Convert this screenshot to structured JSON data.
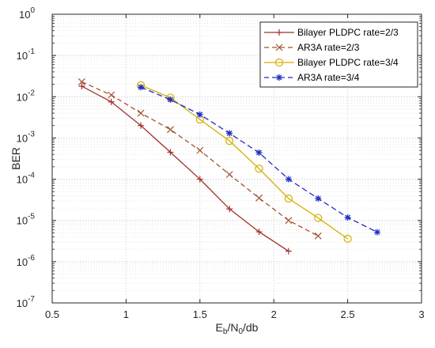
{
  "chart_data": {
    "type": "line",
    "xlabel": "E",
    "xlabel_sub1": "b",
    "xlabel_mid": "/N",
    "xlabel_sub2": "0",
    "xlabel_tail": "/db",
    "ylabel": "BER",
    "xlim": [
      0.5,
      3
    ],
    "ylim": [
      1e-07,
      1
    ],
    "yscale": "log",
    "grid": true,
    "legend_position": "top-right",
    "x_ticks": [
      "0.5",
      "1",
      "1.5",
      "2",
      "2.5",
      "3"
    ],
    "x_tick_values": [
      0.5,
      1,
      1.5,
      2,
      2.5,
      3
    ],
    "y_ticks": [
      {
        "exp": -7,
        "base": "10",
        "sup": "-7"
      },
      {
        "exp": -6,
        "base": "10",
        "sup": "-6"
      },
      {
        "exp": -5,
        "base": "10",
        "sup": "-5"
      },
      {
        "exp": -4,
        "base": "10",
        "sup": "-4"
      },
      {
        "exp": -3,
        "base": "10",
        "sup": "-3"
      },
      {
        "exp": -2,
        "base": "10",
        "sup": "-2"
      },
      {
        "exp": -1,
        "base": "10",
        "sup": "-1"
      },
      {
        "exp": 0,
        "base": "10",
        "sup": "0"
      }
    ],
    "series": [
      {
        "name": "Bilayer PLDPC rate=2/3",
        "color": "#A0302A",
        "dash": "solid",
        "marker": "plus",
        "x": [
          0.7,
          0.9,
          1.1,
          1.3,
          1.5,
          1.7,
          1.9,
          2.1
        ],
        "y": [
          0.018,
          0.0075,
          0.002,
          0.00045,
          0.0001,
          1.9e-05,
          5.3e-06,
          1.8e-06
        ]
      },
      {
        "name": "AR3A rate=2/3",
        "color": "#A0522D",
        "dash": "dashed",
        "marker": "x",
        "x": [
          0.7,
          0.9,
          1.1,
          1.3,
          1.5,
          1.7,
          1.9,
          2.1,
          2.3
        ],
        "y": [
          0.023,
          0.011,
          0.004,
          0.0016,
          0.0005,
          0.00013,
          3.5e-05,
          1e-05,
          4.2e-06
        ]
      },
      {
        "name": "Bilayer PLDPC rate=3/4",
        "color": "#D4B000",
        "dash": "solid",
        "marker": "circle",
        "x": [
          1.1,
          1.3,
          1.5,
          1.7,
          1.9,
          2.1,
          2.3,
          2.5
        ],
        "y": [
          0.019,
          0.0095,
          0.0028,
          0.00085,
          0.00018,
          3.4e-05,
          1.15e-05,
          3.6e-06
        ]
      },
      {
        "name": "AR3A rate=3/4",
        "color": "#1F2FC4",
        "dash": "dashed",
        "marker": "star",
        "x": [
          1.1,
          1.3,
          1.5,
          1.7,
          1.9,
          2.1,
          2.3,
          2.5,
          2.7
        ],
        "y": [
          0.017,
          0.0085,
          0.0037,
          0.0013,
          0.00044,
          0.0001,
          3.4e-05,
          1.18e-05,
          5.2e-06
        ]
      }
    ]
  }
}
